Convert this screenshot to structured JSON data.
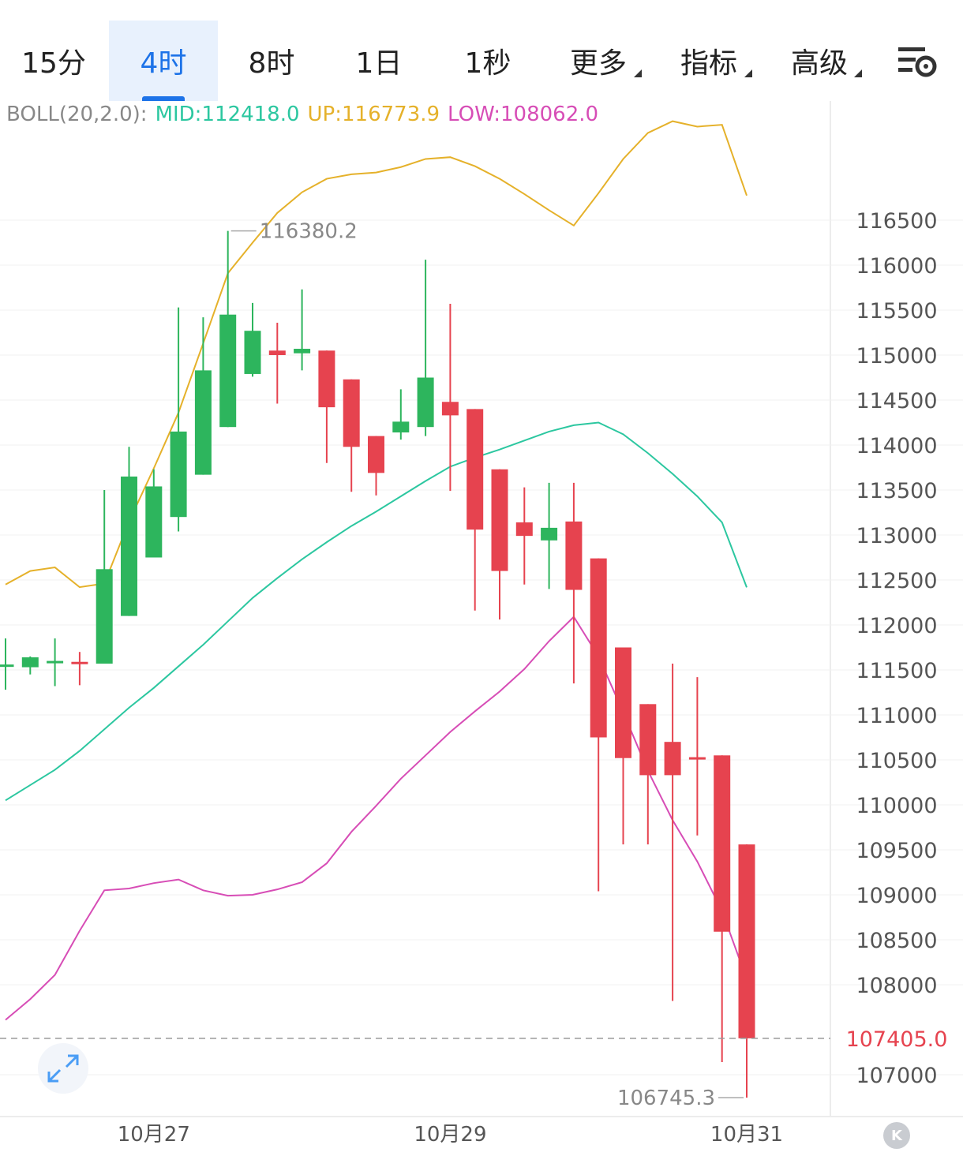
{
  "toolbar": {
    "tabs": [
      {
        "label": "15分",
        "active": false,
        "dropdown": false
      },
      {
        "label": "4时",
        "active": true,
        "dropdown": false
      },
      {
        "label": "8时",
        "active": false,
        "dropdown": false
      },
      {
        "label": "1日",
        "active": false,
        "dropdown": false
      },
      {
        "label": "1秒",
        "active": false,
        "dropdown": false
      },
      {
        "label": "更多",
        "active": false,
        "dropdown": true
      },
      {
        "label": "指标",
        "active": false,
        "dropdown": true
      },
      {
        "label": "高级",
        "active": false,
        "dropdown": true
      }
    ],
    "settings_icon": "chart-settings-icon"
  },
  "boll": {
    "label": "BOLL(20,2.0):",
    "mid": "MID:112418.0",
    "up": "UP:116773.9",
    "low": "LOW:108062.0"
  },
  "chart_data": {
    "type": "candlestick",
    "interval": "4h",
    "y_ticks": [
      116500,
      116000,
      115500,
      115000,
      114500,
      114000,
      113500,
      113000,
      112500,
      112000,
      111500,
      111000,
      110500,
      110000,
      109500,
      109000,
      108500,
      108000,
      107000
    ],
    "x_labels": [
      {
        "label": "10月27",
        "index": 6
      },
      {
        "label": "10月29",
        "index": 18
      },
      {
        "label": "10月31",
        "index": 30
      }
    ],
    "candles": [
      {
        "o": 111550,
        "h": 111850,
        "l": 111280,
        "c": 111560
      },
      {
        "o": 111530,
        "h": 111650,
        "l": 111450,
        "c": 111640
      },
      {
        "o": 111580,
        "h": 111850,
        "l": 111320,
        "c": 111600
      },
      {
        "o": 111590,
        "h": 111700,
        "l": 111330,
        "c": 111570
      },
      {
        "o": 111570,
        "h": 113500,
        "l": 111570,
        "c": 112620
      },
      {
        "o": 112100,
        "h": 113980,
        "l": 112100,
        "c": 113650
      },
      {
        "o": 112750,
        "h": 113730,
        "l": 112750,
        "c": 113540
      },
      {
        "o": 113200,
        "h": 115530,
        "l": 113040,
        "c": 114150
      },
      {
        "o": 113670,
        "h": 115420,
        "l": 113670,
        "c": 114830
      },
      {
        "o": 114200,
        "h": 116380.2,
        "l": 114200,
        "c": 115450
      },
      {
        "o": 114790,
        "h": 115580,
        "l": 114760,
        "c": 115270
      },
      {
        "o": 115050,
        "h": 115360,
        "l": 114460,
        "c": 115000
      },
      {
        "o": 115020,
        "h": 115730,
        "l": 114830,
        "c": 115070
      },
      {
        "o": 115050,
        "h": 115050,
        "l": 113800,
        "c": 114420
      },
      {
        "o": 114730,
        "h": 114730,
        "l": 113480,
        "c": 113980
      },
      {
        "o": 114100,
        "h": 114100,
        "l": 113440,
        "c": 113690
      },
      {
        "o": 114140,
        "h": 114620,
        "l": 114060,
        "c": 114260
      },
      {
        "o": 114200,
        "h": 116060,
        "l": 114100,
        "c": 114750
      },
      {
        "o": 114480,
        "h": 115570,
        "l": 113490,
        "c": 114330
      },
      {
        "o": 114400,
        "h": 114400,
        "l": 112160,
        "c": 113060
      },
      {
        "o": 113730,
        "h": 113730,
        "l": 112060,
        "c": 112600
      },
      {
        "o": 113140,
        "h": 113530,
        "l": 112450,
        "c": 112990
      },
      {
        "o": 112940,
        "h": 113580,
        "l": 112400,
        "c": 113080
      },
      {
        "o": 113150,
        "h": 113580,
        "l": 111350,
        "c": 112390
      },
      {
        "o": 112740,
        "h": 112740,
        "l": 109040,
        "c": 110750
      },
      {
        "o": 111750,
        "h": 111750,
        "l": 109560,
        "c": 110520
      },
      {
        "o": 111120,
        "h": 111120,
        "l": 109560,
        "c": 110330
      },
      {
        "o": 110700,
        "h": 111570,
        "l": 107820,
        "c": 110330
      },
      {
        "o": 110530,
        "h": 111420,
        "l": 109660,
        "c": 110510
      },
      {
        "o": 110550,
        "h": 110550,
        "l": 107140,
        "c": 108590
      },
      {
        "o": 109560,
        "h": 109560,
        "l": 106745.3,
        "c": 107405
      }
    ],
    "boll_up": [
      112450,
      112600,
      112640,
      112420,
      112460,
      113150,
      113740,
      114360,
      115130,
      115910,
      116250,
      116580,
      116810,
      116960,
      117010,
      117030,
      117090,
      117180,
      117200,
      117100,
      116960,
      116790,
      116610,
      116440,
      116800,
      117180,
      117470,
      117600,
      117540,
      117560,
      116773.9
    ],
    "boll_mid": [
      110050,
      110220,
      110390,
      110600,
      110840,
      111080,
      111300,
      111540,
      111780,
      112040,
      112300,
      112520,
      112730,
      112920,
      113100,
      113260,
      113430,
      113600,
      113760,
      113860,
      113950,
      114050,
      114150,
      114220,
      114250,
      114120,
      113910,
      113680,
      113430,
      113140,
      112418.0
    ],
    "boll_low": [
      107610,
      107840,
      108110,
      108600,
      109050,
      109070,
      109130,
      109170,
      109050,
      108990,
      109000,
      109060,
      109140,
      109350,
      109700,
      109990,
      110290,
      110550,
      110810,
      111040,
      111260,
      111510,
      111820,
      112090,
      111650,
      111030,
      110380,
      109830,
      109370,
      108820,
      108062.0
    ],
    "highlights": {
      "max_label": "116380.2",
      "max_index": 9,
      "min_label": "106745.3",
      "min_index": 30,
      "last_price": "107405.0",
      "last_value": 107405.0
    },
    "colors": {
      "up": "#2db55d",
      "down": "#e6434f",
      "boll_up": "#e5b12a",
      "boll_mid": "#2cc7a0",
      "boll_low": "#d74db6",
      "last_price": "#e6434f"
    }
  }
}
